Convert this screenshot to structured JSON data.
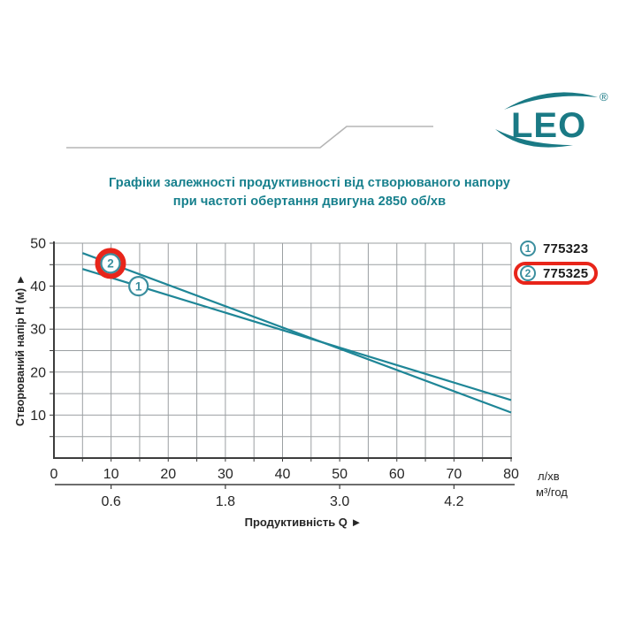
{
  "brand": {
    "logo_text": "LEO",
    "registered_mark": "®"
  },
  "title": {
    "line1": "Графіки залежності продуктивності від створюваного напору",
    "line2": "при частоті обертання двигуна 2850 об/хв"
  },
  "legend": {
    "items": [
      {
        "marker": "1",
        "label": "775323",
        "highlighted": false
      },
      {
        "marker": "2",
        "label": "775325",
        "highlighted": true
      }
    ]
  },
  "colors": {
    "accent_teal": "#17808d",
    "logo_teal": "#1a7a85",
    "curve": "#1f8697",
    "marker_teal": "#3b8e9e",
    "highlight_red": "#e8251a",
    "grid": "#9b9fa2",
    "axis": "#3d3d3d",
    "tick_text": "#262626",
    "deco_line": "#b5b5b5"
  },
  "chart_data": {
    "type": "line",
    "title": "",
    "xlabel": "Продуктивність Q",
    "ylabel": "Створюваний напір H (м)",
    "axis_arrow": "►",
    "x_unit_primary": "л/хв",
    "x_unit_secondary": "м³/год",
    "xlim": [
      0,
      80
    ],
    "ylim": [
      0,
      50
    ],
    "x_ticks": [
      0,
      10,
      20,
      30,
      40,
      50,
      60,
      70,
      80
    ],
    "y_ticks": [
      10,
      20,
      30,
      40,
      50
    ],
    "grid": true,
    "grid_step": 5,
    "secondary_axis_ticks": [
      {
        "label": "0.6",
        "x": 10
      },
      {
        "label": "1.8",
        "x": 30
      },
      {
        "label": "3.0",
        "x": 50
      },
      {
        "label": "4.2",
        "x": 70
      }
    ],
    "series": [
      {
        "id": "775323",
        "marker": "1",
        "marker_at": [
          14.8,
          40.0
        ],
        "points": [
          [
            5,
            44.0
          ],
          [
            80,
            13.5
          ]
        ],
        "highlighted": false
      },
      {
        "id": "775325",
        "marker": "2",
        "marker_at": [
          9.9,
          45.3
        ],
        "points": [
          [
            5,
            47.7
          ],
          [
            80,
            10.6
          ]
        ],
        "highlighted": true
      }
    ]
  }
}
